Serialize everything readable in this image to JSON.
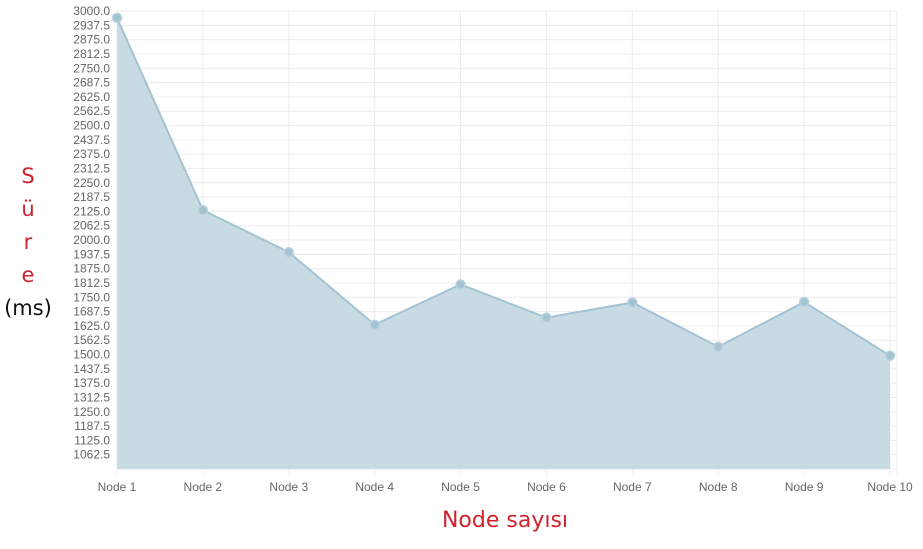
{
  "chart_data": {
    "type": "area",
    "categories": [
      "Node 1",
      "Node 2",
      "Node 3",
      "Node 4",
      "Node 5",
      "Node 6",
      "Node 7",
      "Node 8",
      "Node 9",
      "Node 10"
    ],
    "series": [
      {
        "values": [
          2970,
          2130,
          1947,
          1630,
          1806,
          1661,
          1727,
          1534,
          1729,
          1495
        ]
      }
    ],
    "ylim": [
      1000,
      3000
    ],
    "ytick_step": 62.5,
    "ytick_decimals": 1,
    "grid": true,
    "legend": "none",
    "xlabel": "Node sayısı",
    "ylabel_chars": [
      "S",
      "ü",
      "r",
      "e"
    ],
    "ylabel_unit": "(ms)",
    "colors": {
      "fill": "#c8dbe4",
      "line": "#a3c3d2",
      "point": "#a3c3d2",
      "grid": "#ececec",
      "tick_text": "#666666",
      "label_red": "#d0222c"
    }
  }
}
